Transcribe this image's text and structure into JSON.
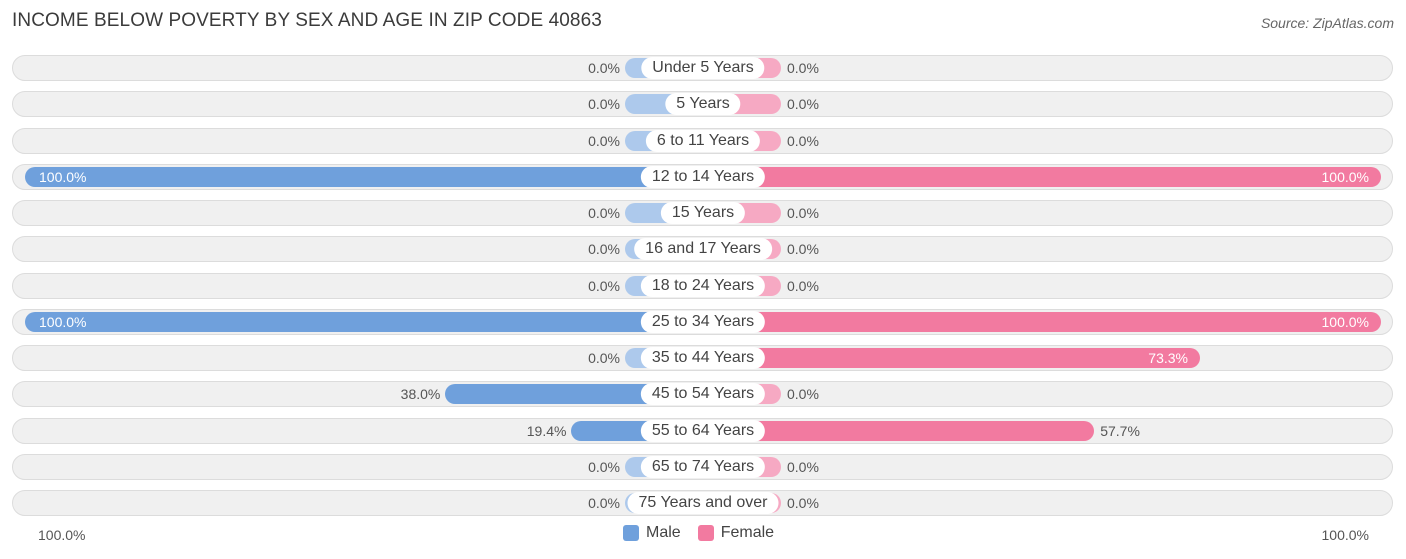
{
  "title": "INCOME BELOW POVERTY BY SEX AND AGE IN ZIP CODE 40863",
  "source": "Source: ZipAtlas.com",
  "colors": {
    "male": "#6fa0dc",
    "female": "#f27aa0",
    "male_stub": "#adc9ec",
    "female_stub": "#f6a9c3"
  },
  "legend": {
    "male_label": "Male",
    "female_label": "Female"
  },
  "axis": {
    "left_label": "100.0%",
    "right_label": "100.0%"
  },
  "chart_data": {
    "type": "bar",
    "orientation": "horizontal-diverging",
    "categories": [
      "Under 5 Years",
      "5 Years",
      "6 to 11 Years",
      "12 to 14 Years",
      "15 Years",
      "16 and 17 Years",
      "18 to 24 Years",
      "25 to 34 Years",
      "35 to 44 Years",
      "45 to 54 Years",
      "55 to 64 Years",
      "65 to 74 Years",
      "75 Years and over"
    ],
    "series": [
      {
        "name": "Male",
        "values": [
          0.0,
          0.0,
          0.0,
          100.0,
          0.0,
          0.0,
          0.0,
          100.0,
          0.0,
          38.0,
          19.4,
          0.0,
          0.0
        ],
        "labels": [
          "0.0%",
          "0.0%",
          "0.0%",
          "100.0%",
          "0.0%",
          "0.0%",
          "0.0%",
          "100.0%",
          "0.0%",
          "38.0%",
          "19.4%",
          "0.0%",
          "0.0%"
        ]
      },
      {
        "name": "Female",
        "values": [
          0.0,
          0.0,
          0.0,
          100.0,
          0.0,
          0.0,
          0.0,
          100.0,
          73.3,
          0.0,
          57.7,
          0.0,
          0.0
        ],
        "labels": [
          "0.0%",
          "0.0%",
          "0.0%",
          "100.0%",
          "0.0%",
          "0.0%",
          "0.0%",
          "100.0%",
          "73.3%",
          "0.0%",
          "57.7%",
          "0.0%",
          "0.0%"
        ]
      }
    ],
    "xlim": [
      0,
      100
    ],
    "legend_position": "bottom-center"
  }
}
